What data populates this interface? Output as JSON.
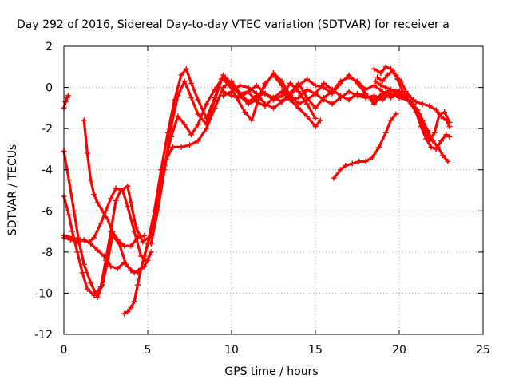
{
  "chart_data": {
    "type": "line",
    "title": "Day 292 of 2016, Sidereal Day-to-day VTEC variation (SDTVAR) for receiver a",
    "xlabel": "GPS time / hours",
    "ylabel": "SDTVAR / TECUs",
    "xlim": [
      0,
      25
    ],
    "ylim": [
      -12,
      2
    ],
    "xticks": [
      0,
      5,
      10,
      15,
      20,
      25
    ],
    "yticks": [
      -12,
      -10,
      -8,
      -6,
      -4,
      -2,
      0,
      2
    ],
    "grid": true,
    "marker": "plus",
    "color": "#ff0000",
    "series": [
      {
        "points": [
          [
            0.0,
            -1.0
          ],
          [
            0.1,
            -0.7
          ],
          [
            0.2,
            -0.5
          ],
          [
            0.25,
            -0.4
          ]
        ]
      },
      {
        "points": [
          [
            0.0,
            -3.1
          ],
          [
            0.3,
            -4.5
          ],
          [
            0.6,
            -6.0
          ],
          [
            0.9,
            -7.5
          ],
          [
            1.2,
            -8.6
          ],
          [
            1.6,
            -9.5
          ],
          [
            2.0,
            -10.2
          ],
          [
            2.3,
            -9.6
          ],
          [
            2.6,
            -8.5
          ],
          [
            2.9,
            -7.2
          ],
          [
            3.3,
            -7.6
          ],
          [
            3.7,
            -8.6
          ],
          [
            4.2,
            -9.0
          ],
          [
            4.6,
            -8.8
          ],
          [
            5.0,
            -7.6
          ],
          [
            5.4,
            -6.0
          ],
          [
            5.8,
            -4.0
          ],
          [
            6.2,
            -2.2
          ],
          [
            6.6,
            -0.6
          ],
          [
            7.0,
            0.6
          ],
          [
            7.3,
            0.9
          ],
          [
            7.6,
            0.2
          ],
          [
            8.0,
            -0.6
          ],
          [
            8.5,
            -1.5
          ],
          [
            9.0,
            -0.5
          ],
          [
            9.4,
            0.4
          ],
          [
            9.8,
            0.2
          ],
          [
            10.3,
            -0.5
          ],
          [
            10.8,
            -1.2
          ],
          [
            11.2,
            -1.6
          ],
          [
            11.6,
            -0.6
          ],
          [
            12.0,
            0.2
          ],
          [
            12.5,
            0.6
          ],
          [
            13.0,
            0.1
          ],
          [
            13.5,
            -0.6
          ],
          [
            14.0,
            -1.0
          ],
          [
            14.5,
            -1.4
          ],
          [
            15.0,
            -1.9
          ],
          [
            15.3,
            -1.6
          ]
        ]
      },
      {
        "points": [
          [
            0.0,
            -5.3
          ],
          [
            0.3,
            -6.2
          ],
          [
            0.5,
            -7.0
          ],
          [
            0.8,
            -8.0
          ],
          [
            1.1,
            -9.0
          ],
          [
            1.4,
            -9.8
          ],
          [
            1.8,
            -10.1
          ],
          [
            2.2,
            -9.7
          ],
          [
            2.5,
            -8.4
          ],
          [
            2.8,
            -7.0
          ],
          [
            3.1,
            -5.5
          ],
          [
            3.4,
            -5.0
          ],
          [
            3.8,
            -4.8
          ],
          [
            4.0,
            -5.6
          ],
          [
            4.3,
            -6.8
          ],
          [
            4.7,
            -7.5
          ],
          [
            5.2,
            -7.2
          ],
          [
            5.6,
            -5.5
          ],
          [
            6.0,
            -3.8
          ],
          [
            6.4,
            -2.4
          ],
          [
            6.8,
            -1.4
          ],
          [
            7.2,
            -1.8
          ],
          [
            7.6,
            -2.3
          ],
          [
            8.0,
            -1.8
          ],
          [
            8.5,
            -0.8
          ],
          [
            9.0,
            -0.1
          ],
          [
            9.5,
            0.5
          ],
          [
            10.0,
            0.0
          ],
          [
            10.5,
            -0.3
          ],
          [
            11.0,
            -0.2
          ],
          [
            11.5,
            0.1
          ],
          [
            12.0,
            -0.3
          ],
          [
            12.5,
            -0.6
          ],
          [
            13.0,
            -0.4
          ],
          [
            13.5,
            0.2
          ],
          [
            14.0,
            -0.2
          ],
          [
            14.5,
            -0.8
          ],
          [
            15.0,
            -1.5
          ]
        ]
      },
      {
        "points": [
          [
            0.0,
            -7.2
          ],
          [
            0.5,
            -7.3
          ],
          [
            1.0,
            -7.4
          ],
          [
            1.5,
            -7.5
          ],
          [
            1.8,
            -7.3
          ],
          [
            2.2,
            -6.6
          ],
          [
            2.5,
            -6.0
          ],
          [
            2.8,
            -5.4
          ],
          [
            3.1,
            -4.9
          ],
          [
            3.5,
            -5.0
          ],
          [
            3.8,
            -5.8
          ],
          [
            4.2,
            -7.0
          ],
          [
            4.6,
            -8.2
          ],
          [
            5.0,
            -8.4
          ]
        ]
      },
      {
        "points": [
          [
            1.2,
            -1.6
          ],
          [
            1.4,
            -3.2
          ],
          [
            1.6,
            -4.5
          ],
          [
            1.8,
            -5.2
          ],
          [
            2.0,
            -5.6
          ],
          [
            2.3,
            -6.0
          ],
          [
            2.6,
            -6.4
          ],
          [
            2.9,
            -7.0
          ],
          [
            3.2,
            -7.4
          ],
          [
            3.6,
            -7.7
          ],
          [
            4.0,
            -7.7
          ],
          [
            4.4,
            -7.3
          ],
          [
            4.8,
            -7.2
          ]
        ]
      },
      {
        "points": [
          [
            0.0,
            -7.3
          ],
          [
            0.4,
            -7.4
          ],
          [
            0.8,
            -7.5
          ],
          [
            1.2,
            -7.4
          ],
          [
            1.6,
            -7.6
          ],
          [
            2.0,
            -7.9
          ],
          [
            2.4,
            -8.2
          ],
          [
            2.8,
            -8.7
          ],
          [
            3.2,
            -8.8
          ],
          [
            3.6,
            -8.5
          ],
          [
            4.0,
            -8.9
          ],
          [
            4.4,
            -9.0
          ],
          [
            4.8,
            -8.7
          ],
          [
            5.2,
            -8.0
          ]
        ]
      },
      {
        "points": [
          [
            3.6,
            -11.0
          ],
          [
            3.8,
            -10.9
          ],
          [
            4.0,
            -10.7
          ],
          [
            4.2,
            -10.4
          ],
          [
            4.4,
            -9.6
          ],
          [
            4.6,
            -8.8
          ],
          [
            4.8,
            -8.2
          ],
          [
            5.0,
            -7.6
          ],
          [
            5.3,
            -6.8
          ],
          [
            5.7,
            -5.0
          ],
          [
            6.1,
            -3.5
          ],
          [
            6.5,
            -2.9
          ],
          [
            7.0,
            -2.9
          ],
          [
            7.5,
            -2.8
          ],
          [
            8.0,
            -2.6
          ],
          [
            8.5,
            -2.0
          ],
          [
            9.0,
            -1.0
          ],
          [
            9.5,
            0.0
          ],
          [
            10.0,
            0.3
          ],
          [
            10.5,
            -0.3
          ],
          [
            11.0,
            -0.7
          ],
          [
            11.5,
            -0.4
          ],
          [
            12.0,
            -0.3
          ],
          [
            12.5,
            -0.5
          ],
          [
            13.0,
            -0.7
          ],
          [
            13.5,
            -0.4
          ],
          [
            14.0,
            -0.8
          ],
          [
            14.5,
            -0.6
          ],
          [
            15.0,
            -0.3
          ],
          [
            15.5,
            0.2
          ],
          [
            16.0,
            -0.1
          ],
          [
            16.5,
            -0.4
          ],
          [
            17.0,
            -0.6
          ],
          [
            17.5,
            -0.3
          ],
          [
            18.0,
            -0.4
          ],
          [
            18.5,
            -0.6
          ],
          [
            19.0,
            -0.3
          ],
          [
            19.5,
            -0.1
          ]
        ]
      },
      {
        "points": [
          [
            5.2,
            -7.6
          ],
          [
            5.6,
            -6.0
          ],
          [
            6.0,
            -4.0
          ],
          [
            6.4,
            -1.9
          ],
          [
            6.8,
            -0.4
          ],
          [
            7.2,
            0.3
          ],
          [
            7.6,
            -0.5
          ],
          [
            8.0,
            -1.3
          ],
          [
            8.5,
            -1.8
          ],
          [
            9.0,
            -0.6
          ],
          [
            9.5,
            0.6
          ],
          [
            10.0,
            0.2
          ],
          [
            10.5,
            -0.4
          ],
          [
            11.0,
            -0.8
          ],
          [
            11.5,
            -0.6
          ],
          [
            12.0,
            0.1
          ],
          [
            12.5,
            0.7
          ],
          [
            13.0,
            0.3
          ],
          [
            13.5,
            -0.4
          ],
          [
            14.0,
            0.1
          ],
          [
            14.5,
            0.4
          ],
          [
            15.0,
            0.1
          ],
          [
            15.5,
            0.0
          ],
          [
            16.0,
            -0.3
          ],
          [
            16.5,
            0.2
          ],
          [
            17.0,
            0.6
          ],
          [
            17.5,
            0.2
          ],
          [
            18.0,
            -0.3
          ],
          [
            18.5,
            -0.8
          ],
          [
            19.0,
            -0.4
          ],
          [
            19.5,
            -0.1
          ],
          [
            20.0,
            -0.2
          ],
          [
            20.5,
            -0.4
          ]
        ]
      },
      {
        "points": [
          [
            9.5,
            -0.2
          ],
          [
            10.0,
            -0.4
          ],
          [
            10.5,
            -0.5
          ],
          [
            11.0,
            -0.2
          ],
          [
            11.5,
            -0.7
          ],
          [
            12.0,
            -0.9
          ],
          [
            12.5,
            -0.5
          ],
          [
            13.0,
            -0.2
          ],
          [
            13.5,
            -0.6
          ],
          [
            14.0,
            -0.5
          ],
          [
            14.5,
            -0.1
          ],
          [
            15.0,
            -0.3
          ],
          [
            15.5,
            -0.6
          ],
          [
            16.0,
            -0.8
          ],
          [
            16.5,
            -0.5
          ],
          [
            17.0,
            -0.2
          ],
          [
            17.5,
            -0.4
          ],
          [
            18.0,
            -0.5
          ],
          [
            18.5,
            -0.4
          ],
          [
            19.0,
            -0.6
          ],
          [
            19.5,
            -0.3
          ],
          [
            20.0,
            -0.5
          ],
          [
            20.5,
            -0.6
          ]
        ]
      },
      {
        "points": [
          [
            9.5,
            -0.4
          ],
          [
            10.0,
            -0.2
          ],
          [
            10.5,
            0.1
          ],
          [
            11.0,
            0.0
          ],
          [
            11.5,
            -0.3
          ],
          [
            12.0,
            -0.8
          ],
          [
            12.5,
            -1.0
          ],
          [
            13.0,
            -0.7
          ],
          [
            13.5,
            -0.3
          ],
          [
            14.0,
            0.2
          ],
          [
            14.5,
            -0.5
          ],
          [
            15.0,
            -1.0
          ],
          [
            15.5,
            -0.5
          ],
          [
            16.0,
            -0.2
          ],
          [
            16.5,
            0.3
          ],
          [
            17.0,
            0.5
          ],
          [
            17.5,
            0.3
          ],
          [
            18.0,
            -0.1
          ],
          [
            18.5,
            0.1
          ],
          [
            19.0,
            -0.2
          ],
          [
            19.5,
            -0.5
          ],
          [
            20.0,
            -0.2
          ]
        ]
      },
      {
        "points": [
          [
            16.1,
            -4.4
          ],
          [
            16.5,
            -4.0
          ],
          [
            16.8,
            -3.8
          ],
          [
            17.2,
            -3.7
          ],
          [
            17.6,
            -3.6
          ],
          [
            18.0,
            -3.6
          ],
          [
            18.4,
            -3.4
          ],
          [
            18.8,
            -2.9
          ],
          [
            19.2,
            -2.2
          ],
          [
            19.5,
            -1.6
          ],
          [
            19.8,
            -1.3
          ]
        ]
      },
      {
        "points": [
          [
            18.5,
            0.9
          ],
          [
            18.9,
            0.7
          ],
          [
            19.2,
            1.0
          ],
          [
            19.5,
            0.9
          ],
          [
            19.8,
            0.6
          ],
          [
            20.1,
            0.3
          ],
          [
            20.4,
            -0.2
          ],
          [
            20.7,
            -0.5
          ],
          [
            21.0,
            -0.7
          ],
          [
            21.4,
            -0.8
          ],
          [
            21.8,
            -0.9
          ],
          [
            22.2,
            -1.1
          ],
          [
            22.5,
            -1.4
          ],
          [
            22.8,
            -1.6
          ],
          [
            23.0,
            -1.9
          ]
        ]
      },
      {
        "points": [
          [
            18.7,
            0.5
          ],
          [
            19.0,
            0.3
          ],
          [
            19.3,
            0.6
          ],
          [
            19.6,
            0.8
          ],
          [
            19.9,
            0.4
          ],
          [
            20.2,
            -0.2
          ],
          [
            20.5,
            -0.6
          ],
          [
            20.8,
            -0.8
          ],
          [
            21.1,
            -1.1
          ],
          [
            21.4,
            -1.6
          ],
          [
            21.7,
            -2.1
          ],
          [
            22.0,
            -2.6
          ],
          [
            22.3,
            -2.9
          ],
          [
            22.6,
            -3.3
          ],
          [
            22.9,
            -3.6
          ]
        ]
      },
      {
        "points": [
          [
            18.6,
            0.3
          ],
          [
            18.9,
            0.1
          ],
          [
            19.2,
            0.0
          ],
          [
            19.5,
            -0.1
          ],
          [
            19.8,
            -0.3
          ],
          [
            20.1,
            -0.4
          ],
          [
            20.4,
            -0.5
          ],
          [
            20.7,
            -0.8
          ],
          [
            21.0,
            -1.2
          ],
          [
            21.3,
            -1.9
          ],
          [
            21.6,
            -2.5
          ],
          [
            21.9,
            -2.9
          ],
          [
            22.2,
            -3.0
          ],
          [
            22.5,
            -2.6
          ],
          [
            22.8,
            -2.3
          ],
          [
            23.0,
            -2.4
          ]
        ]
      },
      {
        "points": [
          [
            20.0,
            -0.3
          ],
          [
            20.4,
            -0.5
          ],
          [
            20.8,
            -0.8
          ],
          [
            21.2,
            -1.3
          ],
          [
            21.5,
            -2.0
          ],
          [
            21.8,
            -2.6
          ],
          [
            22.1,
            -2.2
          ],
          [
            22.4,
            -1.3
          ],
          [
            22.7,
            -1.2
          ],
          [
            23.0,
            -1.7
          ]
        ]
      }
    ]
  }
}
